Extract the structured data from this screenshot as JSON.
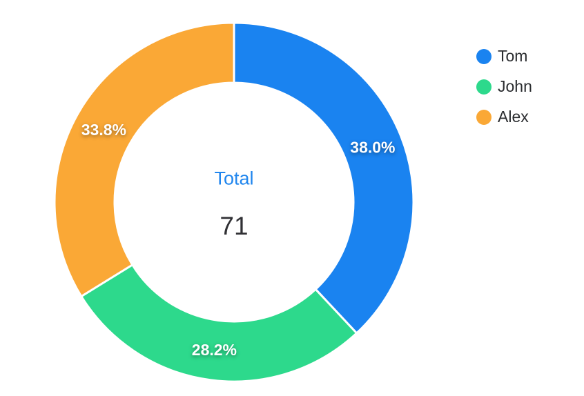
{
  "chart_data": {
    "type": "pie",
    "variant": "donut",
    "title": "",
    "categories": [
      "Tom",
      "John",
      "Alex"
    ],
    "values": [
      27,
      20,
      24
    ],
    "percent_labels": [
      "38.0%",
      "28.2%",
      "33.8%"
    ],
    "colors": [
      "#1a83f0",
      "#2dd98c",
      "#faa836"
    ],
    "total": 71,
    "center": {
      "title": "Total",
      "value": "71",
      "title_color": "#2086ee",
      "value_color": "#303034"
    },
    "legend_position": "right",
    "start_angle_deg": 0,
    "direction": "clockwise",
    "slice_border_color": "#ffffff"
  }
}
